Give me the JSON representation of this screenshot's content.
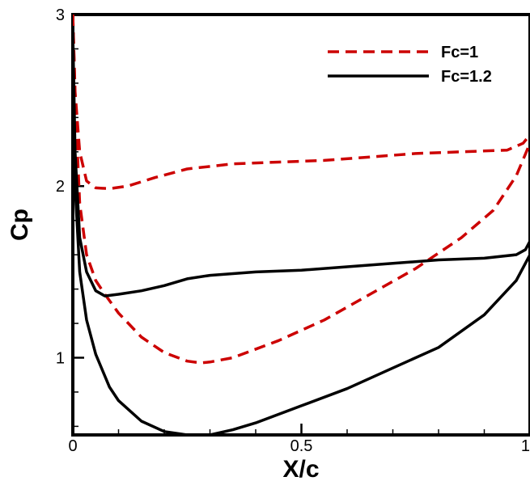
{
  "chart_data": {
    "type": "line",
    "xlabel": "X/c",
    "ylabel": "Cp",
    "xlim": [
      0,
      1
    ],
    "ylim": [
      0.55,
      3.0
    ],
    "x_ticks": [
      {
        "value": 0,
        "label": "0"
      },
      {
        "value": 0.5,
        "label": "0.5"
      },
      {
        "value": 1,
        "label": "1"
      }
    ],
    "y_ticks": [
      {
        "value": 1,
        "label": "1"
      },
      {
        "value": 2,
        "label": "2"
      },
      {
        "value": 3,
        "label": "3"
      }
    ],
    "grid": false,
    "legend_position": "top-right",
    "series": [
      {
        "name": "Fc=1",
        "color": "#cc0000",
        "dash": "dashed",
        "segments": [
          {
            "x": [
              0.0,
              0.005,
              0.015,
              0.03,
              0.05,
              0.08,
              0.12,
              0.18,
              0.25,
              0.35,
              0.45,
              0.55,
              0.65,
              0.75,
              0.85,
              0.95,
              0.985,
              1.0
            ],
            "y": [
              3.0,
              2.55,
              2.2,
              2.03,
              1.99,
              1.985,
              2.0,
              2.05,
              2.1,
              2.13,
              2.14,
              2.15,
              2.17,
              2.19,
              2.2,
              2.21,
              2.25,
              2.3
            ]
          },
          {
            "x": [
              0.0,
              0.005,
              0.015,
              0.03,
              0.05,
              0.07,
              0.1,
              0.15,
              0.2,
              0.25,
              0.28,
              0.3,
              0.35,
              0.45,
              0.55,
              0.65,
              0.75,
              0.85,
              0.92,
              0.97,
              1.0
            ],
            "y": [
              3.0,
              2.5,
              1.9,
              1.6,
              1.45,
              1.37,
              1.26,
              1.12,
              1.03,
              0.98,
              0.97,
              0.975,
              1.0,
              1.1,
              1.22,
              1.37,
              1.52,
              1.7,
              1.86,
              2.06,
              2.25
            ]
          }
        ]
      },
      {
        "name": "Fc=1.2",
        "color": "#000000",
        "dash": "solid",
        "segments": [
          {
            "x": [
              0.0,
              0.005,
              0.015,
              0.03,
              0.05,
              0.07,
              0.1,
              0.15,
              0.2,
              0.25,
              0.3,
              0.4,
              0.5,
              0.6,
              0.7,
              0.8,
              0.9,
              0.97,
              0.99,
              1.0
            ],
            "y": [
              2.9,
              2.2,
              1.7,
              1.5,
              1.39,
              1.36,
              1.37,
              1.39,
              1.42,
              1.46,
              1.48,
              1.5,
              1.51,
              1.53,
              1.55,
              1.57,
              1.58,
              1.6,
              1.63,
              1.68
            ]
          },
          {
            "x": [
              0.0,
              0.005,
              0.015,
              0.03,
              0.05,
              0.08,
              0.1,
              0.15,
              0.2,
              0.25,
              0.3,
              0.35,
              0.4,
              0.5,
              0.6,
              0.7,
              0.8,
              0.9,
              0.97,
              1.0
            ],
            "y": [
              2.9,
              2.0,
              1.5,
              1.22,
              1.02,
              0.83,
              0.75,
              0.63,
              0.57,
              0.55,
              0.55,
              0.58,
              0.62,
              0.72,
              0.82,
              0.94,
              1.06,
              1.25,
              1.45,
              1.6
            ]
          }
        ]
      }
    ]
  }
}
